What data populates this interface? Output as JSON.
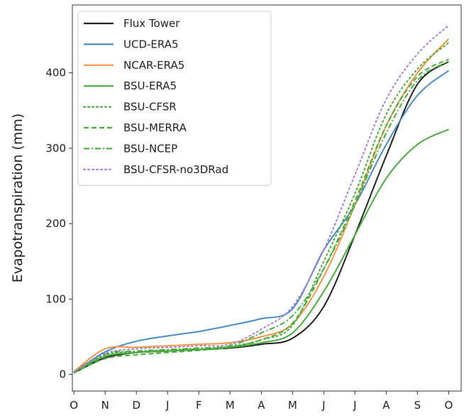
{
  "chart_data": {
    "type": "line",
    "title": "",
    "xlabel": "",
    "ylabel": "Evapotranspiration (mm)",
    "x": [
      0,
      1,
      2,
      3,
      4,
      5,
      6,
      7,
      8,
      9,
      10,
      11,
      12
    ],
    "x_ticks": [
      "O",
      "N",
      "D",
      "J",
      "F",
      "M",
      "A",
      "M",
      "J",
      "J",
      "A",
      "S",
      "O"
    ],
    "xlim": [
      -0.05,
      12.4
    ],
    "y_ticks": [
      0,
      100,
      200,
      300,
      400
    ],
    "ylim": [
      -22,
      490
    ],
    "grid": false,
    "legend_position": "top-left",
    "series": [
      {
        "name": "Flux Tower",
        "color": "#222222",
        "dash": "solid",
        "values": [
          2,
          22,
          29,
          31,
          33,
          35,
          40,
          48,
          90,
          185,
          290,
          385,
          415
        ]
      },
      {
        "name": "UCD-ERA5",
        "color": "#4a8cc8",
        "dash": "solid",
        "values": [
          3,
          30,
          44,
          51,
          57,
          65,
          74,
          87,
          165,
          225,
          305,
          370,
          403
        ]
      },
      {
        "name": "NCAR-ERA5",
        "color": "#f49546",
        "dash": "solid",
        "values": [
          4,
          34,
          36,
          38,
          40,
          42,
          50,
          67,
          130,
          225,
          330,
          400,
          445
        ]
      },
      {
        "name": "BSU-ERA5",
        "color": "#4aab3e",
        "dash": "solid",
        "values": [
          3,
          24,
          29,
          31,
          33,
          36,
          42,
          55,
          110,
          185,
          260,
          305,
          325
        ]
      },
      {
        "name": "BSU-CFSR",
        "color": "#4aab3e",
        "dash": "dotted",
        "values": [
          3,
          26,
          30,
          32,
          34,
          37,
          46,
          65,
          150,
          240,
          345,
          405,
          440
        ]
      },
      {
        "name": "BSU-MERRA",
        "color": "#4aab3e",
        "dash": "dashed",
        "values": [
          2,
          21,
          26,
          29,
          32,
          36,
          46,
          68,
          140,
          230,
          330,
          395,
          418
        ]
      },
      {
        "name": "BSU-NCEP",
        "color": "#4aab3e",
        "dash": "dashdot",
        "values": [
          3,
          27,
          31,
          33,
          35,
          38,
          55,
          78,
          140,
          225,
          320,
          390,
          415
        ]
      },
      {
        "name": "BSU-CFSR-no3DRad",
        "color": "#a97fd8",
        "dash": "dotted",
        "values": [
          3,
          28,
          34,
          36,
          38,
          40,
          60,
          90,
          165,
          265,
          365,
          425,
          463
        ]
      }
    ]
  }
}
